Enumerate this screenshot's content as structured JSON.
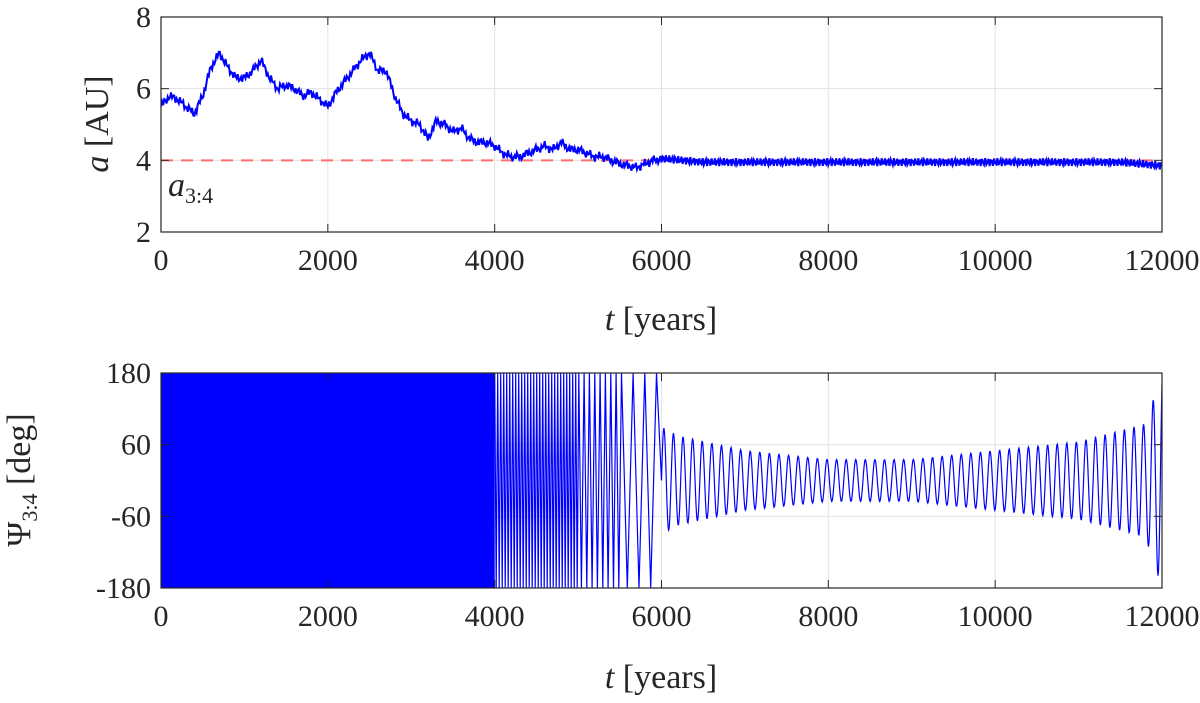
{
  "chart_data": [
    {
      "type": "line",
      "ylabel_symbol": "a",
      "ylabel_unit": "[AU]",
      "xlabel_symbol": "t",
      "xlabel_unit": "[years]",
      "xlim": [
        0,
        12000
      ],
      "ylim": [
        2,
        8
      ],
      "xticks": [
        0,
        2000,
        4000,
        6000,
        8000,
        10000,
        12000
      ],
      "yticks": [
        2,
        4,
        6,
        8
      ],
      "grid": true,
      "series": [
        {
          "color": "#0000ff",
          "x": [
            0,
            100,
            200,
            300,
            400,
            500,
            600,
            700,
            800,
            900,
            1000,
            1100,
            1200,
            1300,
            1400,
            1500,
            1600,
            1700,
            1800,
            1900,
            2000,
            2100,
            2200,
            2300,
            2400,
            2500,
            2600,
            2700,
            2800,
            2900,
            3000,
            3100,
            3200,
            3300,
            3400,
            3500,
            3600,
            3700,
            3800,
            3900,
            4000,
            4100,
            4200,
            4300,
            4400,
            4500,
            4600,
            4700,
            4800,
            4900,
            5000,
            5100,
            5200,
            5300,
            5400,
            5500,
            5600,
            5700,
            5800,
            5900,
            6000,
            6500,
            7000,
            7500,
            8000,
            8500,
            9000,
            9500,
            10000,
            10500,
            11000,
            11500,
            12000
          ],
          "values": [
            5.5,
            5.8,
            5.7,
            5.5,
            5.3,
            5.8,
            6.6,
            7.0,
            6.6,
            6.3,
            6.3,
            6.5,
            6.8,
            6.3,
            6.0,
            6.1,
            6.0,
            5.8,
            5.9,
            5.7,
            5.5,
            5.9,
            6.2,
            6.5,
            6.8,
            7.0,
            6.5,
            6.5,
            5.8,
            5.3,
            5.1,
            5.0,
            4.6,
            5.1,
            5.0,
            4.8,
            4.9,
            4.6,
            4.5,
            4.5,
            4.4,
            4.2,
            4.1,
            4.1,
            4.2,
            4.3,
            4.4,
            4.3,
            4.5,
            4.3,
            4.3,
            4.2,
            4.1,
            4.1,
            4.0,
            3.9,
            3.85,
            3.8,
            3.9,
            4.0,
            4.05,
            3.95,
            3.95,
            3.95,
            3.95,
            3.95,
            3.95,
            3.95,
            3.95,
            3.95,
            3.95,
            3.95,
            3.85
          ]
        }
      ],
      "reference_line": {
        "y": 4,
        "color": "#ff6f6f",
        "style": "dashed",
        "label_main": "a",
        "label_sub": "3:4"
      }
    },
    {
      "type": "line",
      "ylabel_symbol": "Ψ",
      "ylabel_sub": "3:4",
      "ylabel_unit": "[deg]",
      "xlabel_symbol": "t",
      "xlabel_unit": "[years]",
      "xlim": [
        0,
        12000
      ],
      "ylim": [
        -180,
        180
      ],
      "xticks": [
        0,
        2000,
        4000,
        6000,
        8000,
        10000,
        12000
      ],
      "yticks": [
        -180,
        -60,
        60,
        180
      ],
      "grid": true,
      "series": [
        {
          "color": "#0000ff",
          "circulation_until": 6000,
          "libration_center": 0,
          "libration_amplitude": [
            [
              6000,
              90
            ],
            [
              6200,
              75
            ],
            [
              7000,
              50
            ],
            [
              8000,
              35
            ],
            [
              9000,
              35
            ],
            [
              10000,
              50
            ],
            [
              11000,
              65
            ],
            [
              11800,
              95
            ],
            [
              12000,
              180
            ]
          ]
        }
      ]
    }
  ]
}
